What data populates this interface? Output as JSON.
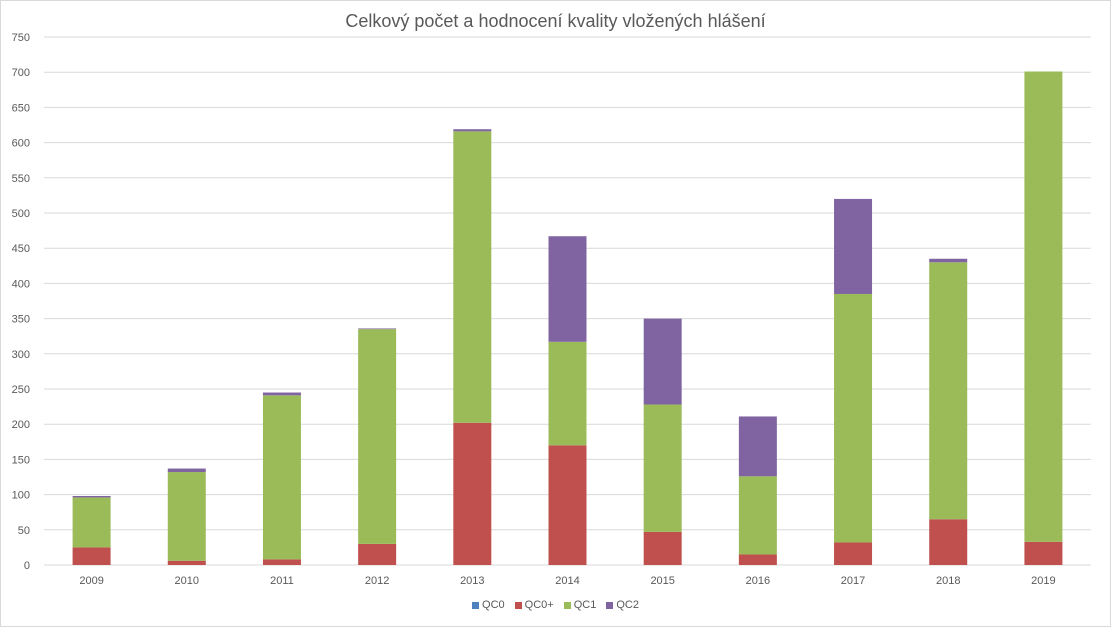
{
  "chart_data": {
    "type": "bar",
    "stacked": true,
    "title": "Celkový počet a hodnocení kvality vložených hlášení",
    "xlabel": "",
    "ylabel": "",
    "ylim": [
      0,
      750
    ],
    "yticks": [
      0,
      50,
      100,
      150,
      200,
      250,
      300,
      350,
      400,
      450,
      500,
      550,
      600,
      650,
      700,
      750
    ],
    "grid": true,
    "legend_position": "bottom",
    "categories": [
      "2009",
      "2010",
      "2011",
      "2012",
      "2013",
      "2014",
      "2015",
      "2016",
      "2017",
      "2018",
      "2019"
    ],
    "series": [
      {
        "name": "QC0",
        "color": "#4f81bd",
        "values": [
          0,
          0,
          0,
          0,
          0,
          0,
          0,
          0,
          0,
          0,
          0
        ]
      },
      {
        "name": "QC0+",
        "color": "#c0504d",
        "values": [
          25,
          6,
          8,
          30,
          202,
          170,
          47,
          15,
          32,
          65,
          33
        ]
      },
      {
        "name": "QC1",
        "color": "#9bbb59",
        "values": [
          71,
          126,
          233,
          305,
          414,
          147,
          181,
          111,
          353,
          365,
          668
        ]
      },
      {
        "name": "QC2",
        "color": "#8064a2",
        "values": [
          2,
          5,
          4,
          1,
          3,
          150,
          122,
          85,
          135,
          5,
          0
        ]
      }
    ]
  }
}
